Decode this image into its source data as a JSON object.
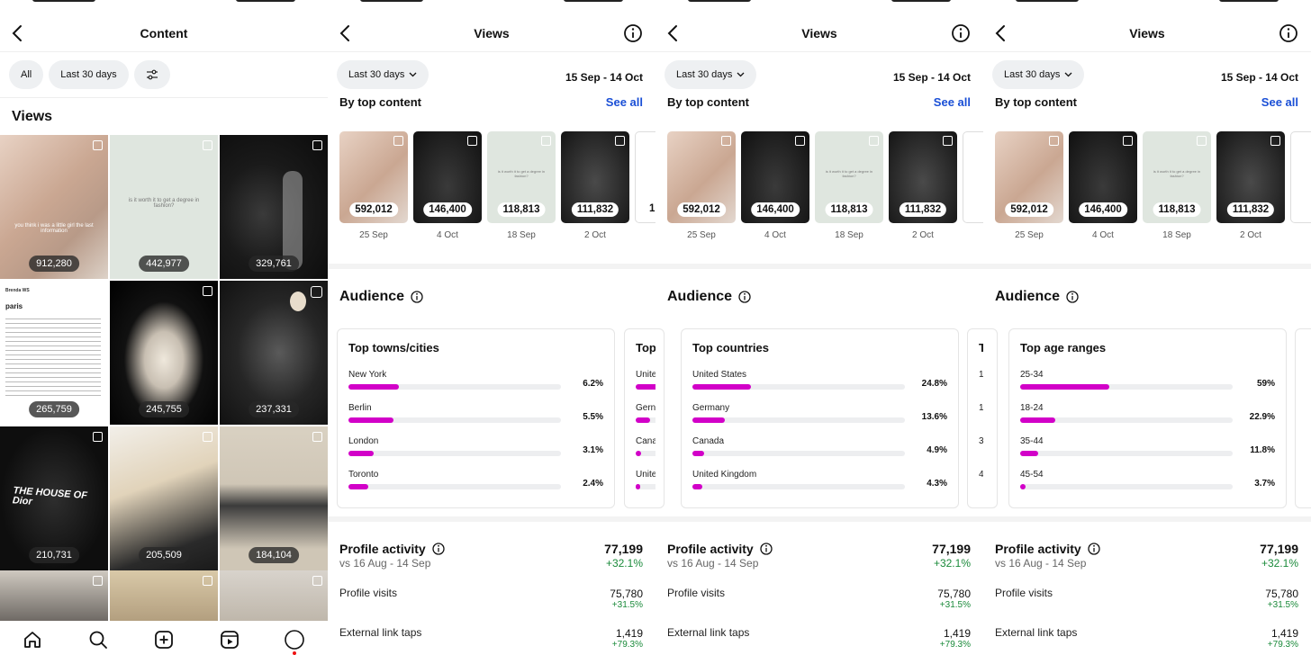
{
  "content_screen": {
    "title": "Content",
    "chips": [
      "All",
      "Last 30 days"
    ],
    "filter_icon": "sliders-icon",
    "section_title": "Views",
    "grid": [
      {
        "value": "912,280",
        "caption": "you think i was a little girl the last information"
      },
      {
        "value": "442,977",
        "caption": "is it worth it to get a degree in fashion?"
      },
      {
        "value": "329,761"
      },
      {
        "value": "265,759",
        "doc_title": "Brenda WS",
        "doc_heading": "paris"
      },
      {
        "value": "245,755"
      },
      {
        "value": "237,331"
      },
      {
        "value": "210,731",
        "caption": "THE HOUSE OF Dior"
      },
      {
        "value": "205,509"
      },
      {
        "value": "184,104"
      }
    ]
  },
  "views_screen": {
    "title": "Views",
    "date_chip": "Last 30 days",
    "date_range": "15 Sep - 14 Oct",
    "top_content_title": "By top content",
    "see_all": "See all",
    "top_content": [
      {
        "value": "592,012",
        "date": "25 Sep"
      },
      {
        "value": "146,400",
        "date": "4 Oct"
      },
      {
        "value": "118,813",
        "date": "18 Sep",
        "caption": "is it worth it to get a degree in fashion?"
      },
      {
        "value": "111,832",
        "date": "2 Oct"
      },
      {
        "value": "1("
      }
    ],
    "audience_title": "Audience",
    "profile_activity": {
      "title": "Profile activity",
      "total": "77,199",
      "compare": "vs 16 Aug - 14 Sep",
      "change": "+32.1%",
      "rows": [
        {
          "label": "Profile visits",
          "value": "75,780",
          "change": "+31.5%"
        },
        {
          "label": "External link taps",
          "value": "1,419",
          "change": "+79.3%"
        }
      ]
    }
  },
  "audience_cards": {
    "towns": {
      "title": "Top towns/cities",
      "rows": [
        {
          "label": "New York",
          "pct": "6.2%",
          "level": 6.2
        },
        {
          "label": "Berlin",
          "pct": "5.5%",
          "level": 5.5
        },
        {
          "label": "London",
          "pct": "3.1%",
          "level": 3.1
        },
        {
          "label": "Toronto",
          "pct": "2.4%",
          "level": 2.4
        }
      ]
    },
    "countries": {
      "title": "Top countries",
      "rows": [
        {
          "label": "United States",
          "pct": "24.8%",
          "level": 24.8
        },
        {
          "label": "Germany",
          "pct": "13.6%",
          "level": 13.6
        },
        {
          "label": "Canada",
          "pct": "4.9%",
          "level": 4.9
        },
        {
          "label": "United Kingdom",
          "pct": "4.3%",
          "level": 4.3
        }
      ]
    },
    "ages": {
      "title": "Top age ranges",
      "rows": [
        {
          "label": "25-34",
          "pct": "59%",
          "level": 59
        },
        {
          "label": "18-24",
          "pct": "22.9%",
          "level": 22.9
        },
        {
          "label": "35-44",
          "pct": "11.8%",
          "level": 11.8
        },
        {
          "label": "45-54",
          "pct": "3.7%",
          "level": 3.7
        }
      ]
    },
    "peek_countries": {
      "title": "Top",
      "rows": [
        "Unite",
        "Gern",
        "Cana",
        "Unite"
      ]
    },
    "peek_ages": {
      "title": "T",
      "rows": [
        "1",
        "1",
        "3",
        "4"
      ]
    }
  },
  "tabbar": {
    "icons": [
      "home-icon",
      "search-icon",
      "create-icon",
      "reels-icon",
      "profile-icon"
    ]
  },
  "colors": {
    "accent": "#d200c8",
    "link": "#1a4fd6",
    "positive": "#1a8a3a"
  }
}
